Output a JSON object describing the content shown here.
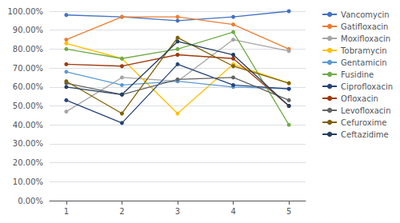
{
  "chart_data": {
    "type": "line",
    "x": [
      1,
      2,
      3,
      4,
      5
    ],
    "series": [
      {
        "name": "Vancomycin",
        "color": "#4472C4",
        "values": [
          98.0,
          97.0,
          95.0,
          97.0,
          100.0
        ]
      },
      {
        "name": "Gatifloxacin",
        "color": "#ED7D31",
        "values": [
          85.0,
          97.0,
          97.0,
          93.0,
          80.0
        ]
      },
      {
        "name": "Moxifloxacin",
        "color": "#A5A5A5",
        "values": [
          47.0,
          65.0,
          63.0,
          85.0,
          79.0
        ]
      },
      {
        "name": "Tobramycin",
        "color": "#FFC000",
        "values": [
          83.0,
          75.0,
          46.0,
          72.0,
          62.0
        ]
      },
      {
        "name": "Gentamicin",
        "color": "#5B9BD5",
        "values": [
          68.0,
          61.0,
          63.0,
          60.0,
          59.0
        ]
      },
      {
        "name": "Fusidine",
        "color": "#70AD47",
        "values": [
          80.0,
          75.0,
          80.0,
          89.0,
          40.0
        ]
      },
      {
        "name": "Ciprofloxacin",
        "color": "#264478",
        "values": [
          53.0,
          41.0,
          72.0,
          61.0,
          59.0
        ]
      },
      {
        "name": "Ofloxacin",
        "color": "#9E3B0E",
        "values": [
          72.0,
          71.0,
          77.0,
          75.0,
          50.0
        ]
      },
      {
        "name": "Levofloxacin",
        "color": "#636363",
        "values": [
          62.0,
          56.0,
          64.0,
          65.0,
          53.0
        ]
      },
      {
        "name": "Cefuroxime",
        "color": "#806000",
        "values": [
          63.0,
          46.0,
          86.0,
          71.0,
          62.0
        ]
      },
      {
        "name": "Ceftazidime",
        "color": "#243F60",
        "values": [
          60.0,
          56.0,
          84.0,
          77.0,
          50.0
        ]
      }
    ],
    "xlim": [
      0.7,
      5.3
    ],
    "xticks": [
      1,
      2,
      3,
      4,
      5
    ],
    "ylim": [
      0,
      100
    ],
    "yticks": [
      {
        "value": 0,
        "label": "0.00%"
      },
      {
        "value": 10,
        "label": "10.00%"
      },
      {
        "value": 20,
        "label": "20.00%"
      },
      {
        "value": 30,
        "label": "30.00%"
      },
      {
        "value": 40,
        "label": "40.00%"
      },
      {
        "value": 50,
        "label": "50.00%"
      },
      {
        "value": 60,
        "label": "60.00%"
      },
      {
        "value": 70,
        "label": "70.00%"
      },
      {
        "value": 80,
        "label": "80.00%"
      },
      {
        "value": 90,
        "label": "90.00%"
      },
      {
        "value": 100,
        "label": "100.00%"
      }
    ],
    "grid": true,
    "legend": "right",
    "marker": "circle"
  }
}
